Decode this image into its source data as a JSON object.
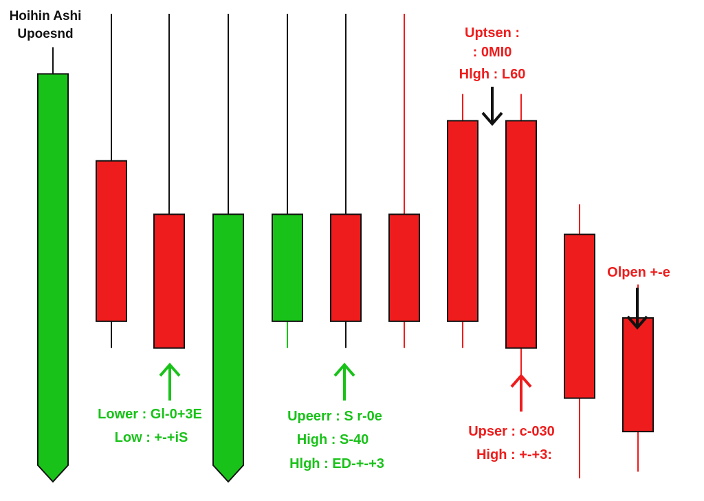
{
  "chart_data": {
    "type": "candlestick",
    "title_lines": [
      "Hoihin Ashi",
      "Upoesnd"
    ],
    "colors": {
      "up": "#19c219",
      "down": "#ee1c1c",
      "wick": "#111111"
    },
    "candles": [
      {
        "open": 0,
        "close": 610,
        "high": 650,
        "low": -10,
        "color": "up",
        "wick_color": "wick",
        "arrow_bottom": true
      },
      {
        "open": 480,
        "close": 240,
        "high": 700,
        "low": 200,
        "color": "down",
        "wick_color": "wick"
      },
      {
        "open": 400,
        "close": 200,
        "high": 700,
        "low": 200,
        "color": "down",
        "wick_color": "wick"
      },
      {
        "open": 0,
        "close": 400,
        "high": 700,
        "low": -10,
        "color": "up",
        "wick_color": "wick",
        "arrow_bottom": true
      },
      {
        "open": 240,
        "close": 400,
        "high": 700,
        "low": 200,
        "color": "up",
        "wick_color": "wick",
        "lower_wick_color": "up"
      },
      {
        "open": 400,
        "close": 240,
        "high": 700,
        "low": 200,
        "color": "down",
        "wick_color": "wick"
      },
      {
        "open": 400,
        "close": 240,
        "high": 700,
        "low": 200,
        "color": "down",
        "wick_color": "down"
      },
      {
        "open": 540,
        "close": 240,
        "high": 580,
        "low": 200,
        "color": "down",
        "wick_color": "down"
      },
      {
        "open": 540,
        "close": 200,
        "high": 580,
        "low": 150,
        "color": "down",
        "wick_color": "down"
      },
      {
        "open": 370,
        "close": 125,
        "high": 415,
        "low": 5,
        "color": "down",
        "wick_color": "down"
      },
      {
        "open": 245,
        "close": 75,
        "high": 295,
        "low": 15,
        "color": "down",
        "wick_color": "down"
      }
    ],
    "annotations": [
      {
        "color": "up",
        "lines": [
          "Lower : Gl-0+3E",
          "Low : +-+iS"
        ],
        "arrow": "up"
      },
      {
        "color": "up",
        "lines": [
          "Upeerr : S r-0e",
          "High : S-40",
          "Hlgh : ED-+-+3"
        ],
        "arrow": "up"
      },
      {
        "color": "down",
        "lines": [
          "Uptsen :",
          ": 0MI0",
          "Hlgh : L60"
        ],
        "arrow": "down"
      },
      {
        "color": "down",
        "lines": [
          "Upser : ᴄ-030",
          "High : +-+3:"
        ],
        "arrow": "up"
      },
      {
        "color": "down",
        "lines": [
          "Olpen +-e"
        ],
        "arrow": "down"
      }
    ]
  }
}
